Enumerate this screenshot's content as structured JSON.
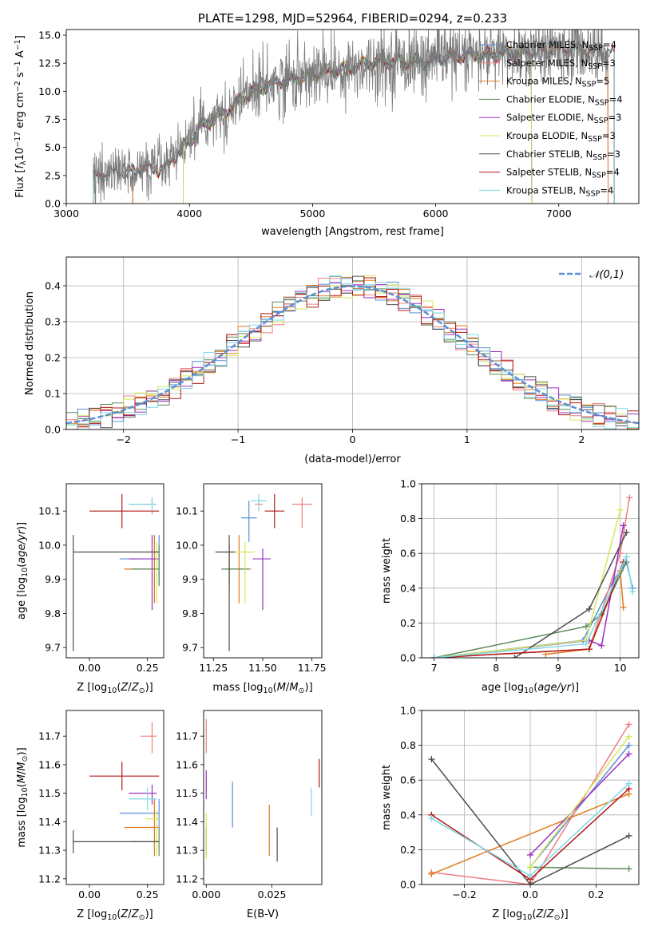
{
  "colors": {
    "chabrier_miles": "#5b8fd6",
    "salpeter_miles": "#f07f7f",
    "kroupa_miles": "#e07b1f",
    "chabrier_elodie": "#5a8a5a",
    "salpeter_elodie": "#9b30c0",
    "kroupa_elodie": "#d4e85a",
    "chabrier_stelib": "#4d4d4d",
    "salpeter_stelib": "#b21818",
    "kroupa_stelib": "#7fd9e6",
    "normal_curve": "#5b8fd6"
  },
  "chart_data": [
    {
      "id": "spectrum",
      "type": "line",
      "title": "PLATE=1298, MJD=52964, FIBERID=0294, z=0.233",
      "xlabel": "wavelength [Angstrom, rest frame]",
      "ylabel": "Flux [f_λ10^-17 erg cm^-2 s^-1 A^-1]",
      "xlim": [
        3000,
        7650
      ],
      "ylim": [
        0,
        15.5
      ],
      "xticks": [
        "3000",
        "4000",
        "5000",
        "6000",
        "7000"
      ],
      "yticks": [
        "0.0",
        "2.5",
        "5.0",
        "7.5",
        "10.0",
        "12.5",
        "15.0"
      ],
      "legend_position": "right",
      "legend": [
        "Chabrier MILES, N_SSP=4",
        "Salpeter MILES, N_SSP=3",
        "Kroupa MILES, N_SSP=5",
        "Chabrier ELODIE, N_SSP=4",
        "Salpeter ELODIE, N_SSP=3",
        "Kroupa ELODIE, N_SSP=3",
        "Chabrier STELIB, N_SSP=3",
        "Salpeter STELIB, N_SSP=4",
        "Kroupa STELIB, N_SSP=4"
      ],
      "continuum_x": [
        3200,
        3400,
        3600,
        3800,
        3950,
        4100,
        4300,
        4500,
        4700,
        4900,
        5100,
        5300,
        5500,
        5700,
        5900,
        6100,
        6300,
        6500,
        6700,
        6900,
        7100,
        7300,
        7450
      ],
      "continuum_y": [
        2.4,
        2.8,
        3.0,
        3.1,
        5.0,
        6.9,
        8.2,
        9.9,
        10.8,
        11.2,
        11.7,
        12.1,
        12.6,
        12.7,
        12.6,
        13.1,
        13.2,
        13.3,
        13.4,
        13.6,
        13.9,
        13.5,
        13.3
      ]
    },
    {
      "id": "residual-histogram",
      "type": "line",
      "xlabel": "(data-model)/error",
      "ylabel": "Normed distribution",
      "xlim": [
        -2.5,
        2.5
      ],
      "ylim": [
        0,
        0.48
      ],
      "xticks": [
        "−2",
        "−1",
        "0",
        "1",
        "2"
      ],
      "yticks": [
        "0.0",
        "0.1",
        "0.2",
        "0.3",
        "0.4"
      ],
      "grid": true,
      "legend": [
        "𝒩(0,1)"
      ],
      "legend_position": "top-right"
    },
    {
      "id": "age-vs-Z",
      "type": "scatter",
      "xlabel": "Z [log10(Z/Z☉)]",
      "ylabel": "age  [log10(age/yr)]",
      "xlim": [
        -0.1,
        0.32
      ],
      "ylim": [
        9.67,
        10.18
      ],
      "xticks": [
        "0.00",
        "0.25"
      ],
      "yticks": [
        "9.7",
        "9.8",
        "9.9",
        "10.0",
        "10.1"
      ],
      "points": [
        {
          "model": "chabrier_miles",
          "x": 0.3,
          "y": 9.96,
          "xerr": [
            0.17,
            0.0
          ],
          "yerr": [
            0.07,
            0.07
          ]
        },
        {
          "model": "salpeter_miles",
          "x": 0.27,
          "y": 10.12,
          "xerr": [
            0.1,
            0.02
          ],
          "yerr": [
            0.03,
            0.02
          ]
        },
        {
          "model": "kroupa_miles",
          "x": 0.28,
          "y": 9.93,
          "xerr": [
            0.13,
            0.02
          ],
          "yerr": [
            0.1,
            0.1
          ]
        },
        {
          "model": "chabrier_elodie",
          "x": 0.3,
          "y": 9.93,
          "xerr": [
            0.12,
            0.0
          ],
          "yerr": [
            0.05,
            0.07
          ]
        },
        {
          "model": "salpeter_elodie",
          "x": 0.27,
          "y": 9.96,
          "xerr": [
            0.1,
            0.03
          ],
          "yerr": [
            0.15,
            0.07
          ]
        },
        {
          "model": "kroupa_elodie",
          "x": 0.29,
          "y": 9.98,
          "xerr": [
            0.05,
            0.01
          ],
          "yerr": [
            0.15,
            0.03
          ]
        },
        {
          "model": "chabrier_stelib",
          "x": -0.07,
          "y": 9.98,
          "xerr": [
            0.0,
            0.37
          ],
          "yerr": [
            0.29,
            0.05
          ]
        },
        {
          "model": "salpeter_stelib",
          "x": 0.14,
          "y": 10.1,
          "xerr": [
            0.14,
            0.16
          ],
          "yerr": [
            0.05,
            0.05
          ]
        },
        {
          "model": "kroupa_stelib",
          "x": 0.27,
          "y": 10.12,
          "xerr": [
            0.1,
            0.02
          ],
          "yerr": [
            0.02,
            0.02
          ]
        }
      ]
    },
    {
      "id": "age-vs-mass",
      "type": "scatter",
      "xlabel": "mass [log10(M/M☉)]",
      "ylabel": "",
      "xlim": [
        11.2,
        11.8
      ],
      "ylim": [
        9.67,
        10.18
      ],
      "xticks": [
        "11.25",
        "11.50",
        "11.75"
      ],
      "yticks": [
        "9.7",
        "9.8",
        "9.9",
        "10.0",
        "10.1"
      ],
      "points": [
        {
          "model": "chabrier_miles",
          "x": 11.43,
          "y": 10.08,
          "xerr": [
            0.04,
            0.04
          ],
          "yerr": [
            0.07,
            0.05
          ]
        },
        {
          "model": "salpeter_miles",
          "x": 11.48,
          "y": 10.12,
          "xerr": [
            0.02,
            0.02
          ],
          "yerr": [
            0.02,
            0.02
          ]
        },
        {
          "model": "kroupa_miles",
          "x": 11.38,
          "y": 9.93,
          "xerr": [
            0.07,
            0.06
          ],
          "yerr": [
            0.1,
            0.1
          ]
        },
        {
          "model": "chabrier_elodie",
          "x": 11.33,
          "y": 9.93,
          "xerr": [
            0.04,
            0.1
          ],
          "yerr": [
            0.05,
            0.07
          ]
        },
        {
          "model": "salpeter_elodie",
          "x": 11.5,
          "y": 9.96,
          "xerr": [
            0.05,
            0.04
          ],
          "yerr": [
            0.15,
            0.03
          ]
        },
        {
          "model": "kroupa_elodie",
          "x": 11.41,
          "y": 9.98,
          "xerr": [
            0.1,
            0.05
          ],
          "yerr": [
            0.15,
            0.03
          ]
        },
        {
          "model": "chabrier_stelib",
          "x": 11.33,
          "y": 9.98,
          "xerr": [
            0.07,
            0.03
          ],
          "yerr": [
            0.29,
            0.05
          ]
        },
        {
          "model": "salpeter_stelib",
          "x": 11.56,
          "y": 10.1,
          "xerr": [
            0.05,
            0.05
          ],
          "yerr": [
            0.05,
            0.05
          ]
        },
        {
          "model": "kroupa_stelib",
          "x": 11.48,
          "y": 10.13,
          "xerr": [
            0.04,
            0.04
          ],
          "yerr": [
            0.03,
            0.02
          ]
        },
        {
          "model": "salpeter_miles",
          "x": 11.7,
          "y": 10.12,
          "xerr": [
            0.05,
            0.05
          ],
          "yerr": [
            0.07,
            0.02
          ]
        }
      ]
    },
    {
      "id": "mass-weight-vs-age",
      "type": "line",
      "xlabel": "age  [log10(age/yr)]",
      "ylabel": "mass weight",
      "xlim": [
        6.8,
        10.3
      ],
      "ylim": [
        0.0,
        1.0
      ],
      "xticks": [
        "7",
        "8",
        "9",
        "10"
      ],
      "yticks": [
        "0.0",
        "0.2",
        "0.4",
        "0.6",
        "0.8",
        "1.0"
      ],
      "grid": true,
      "series": [
        {
          "model": "chabrier_miles",
          "x": [
            7.0,
            9.4,
            9.9,
            10.1,
            10.2
          ],
          "y": [
            0.0,
            0.1,
            0.45,
            0.55,
            0.4
          ]
        },
        {
          "model": "salpeter_miles",
          "x": [
            7.0,
            9.5,
            10.0,
            10.15
          ],
          "y": [
            0.0,
            0.05,
            0.6,
            0.92
          ]
        },
        {
          "model": "kroupa_miles",
          "x": [
            8.8,
            9.5,
            10.0,
            10.05
          ],
          "y": [
            0.02,
            0.05,
            0.5,
            0.29
          ]
        },
        {
          "model": "chabrier_elodie",
          "x": [
            7.0,
            9.45,
            9.7,
            10.1
          ],
          "y": [
            0.0,
            0.18,
            0.25,
            0.55
          ]
        },
        {
          "model": "salpeter_elodie",
          "x": [
            7.0,
            9.5,
            9.7,
            10.05
          ],
          "y": [
            0.0,
            0.1,
            0.07,
            0.76
          ]
        },
        {
          "model": "kroupa_elodie",
          "x": [
            7.0,
            9.45,
            10.0
          ],
          "y": [
            0.0,
            0.1,
            0.85
          ]
        },
        {
          "model": "chabrier_stelib",
          "x": [
            8.3,
            9.5,
            10.1
          ],
          "y": [
            0.0,
            0.28,
            0.72
          ]
        },
        {
          "model": "salpeter_stelib",
          "x": [
            7.0,
            9.5,
            10.05
          ],
          "y": [
            0.0,
            0.05,
            0.55
          ]
        },
        {
          "model": "kroupa_stelib",
          "x": [
            7.0,
            9.45,
            10.1,
            10.2
          ],
          "y": [
            0.0,
            0.08,
            0.58,
            0.38
          ]
        }
      ]
    },
    {
      "id": "mass-vs-Z",
      "type": "scatter",
      "xlabel": "Z [log10(Z/Z☉)]",
      "ylabel": "mass [log10(M/M☉)]",
      "xlim": [
        -0.1,
        0.32
      ],
      "ylim": [
        11.18,
        11.79
      ],
      "xticks": [
        "0.00",
        "0.25"
      ],
      "yticks": [
        "11.2",
        "11.3",
        "11.4",
        "11.5",
        "11.6",
        "11.7"
      ],
      "points": [
        {
          "model": "chabrier_miles",
          "x": 0.3,
          "y": 11.43,
          "xerr": [
            0.17,
            0.0
          ],
          "yerr": [
            0.05,
            0.05
          ]
        },
        {
          "model": "salpeter_miles",
          "x": 0.27,
          "y": 11.7,
          "xerr": [
            0.05,
            0.02
          ],
          "yerr": [
            0.06,
            0.05
          ]
        },
        {
          "model": "kroupa_miles",
          "x": 0.28,
          "y": 11.38,
          "xerr": [
            0.13,
            0.02
          ],
          "yerr": [
            0.1,
            0.1
          ]
        },
        {
          "model": "chabrier_elodie",
          "x": 0.3,
          "y": 11.33,
          "xerr": [
            0.12,
            0.0
          ],
          "yerr": [
            0.05,
            0.05
          ]
        },
        {
          "model": "salpeter_elodie",
          "x": 0.27,
          "y": 11.5,
          "xerr": [
            0.1,
            0.02
          ],
          "yerr": [
            0.04,
            0.03
          ]
        },
        {
          "model": "kroupa_elodie",
          "x": 0.29,
          "y": 11.41,
          "xerr": [
            0.05,
            0.01
          ],
          "yerr": [
            0.13,
            0.03
          ]
        },
        {
          "model": "chabrier_stelib",
          "x": -0.07,
          "y": 11.33,
          "xerr": [
            0.0,
            0.37
          ],
          "yerr": [
            0.04,
            0.04
          ]
        },
        {
          "model": "salpeter_stelib",
          "x": 0.14,
          "y": 11.56,
          "xerr": [
            0.14,
            0.16
          ],
          "yerr": [
            0.05,
            0.05
          ]
        },
        {
          "model": "kroupa_stelib",
          "x": 0.25,
          "y": 11.48,
          "xerr": [
            0.08,
            0.04
          ],
          "yerr": [
            0.04,
            0.04
          ]
        }
      ]
    },
    {
      "id": "mass-vs-ebv",
      "type": "scatter",
      "xlabel": "E(B-V)",
      "ylabel": "",
      "xlim": [
        -0.001,
        0.044
      ],
      "ylim": [
        11.18,
        11.79
      ],
      "xticks": [
        "0.000",
        "0.025"
      ],
      "yticks": [
        "11.2",
        "11.3",
        "11.4",
        "11.5",
        "11.6",
        "11.7"
      ],
      "points": [
        {
          "model": "chabrier_miles",
          "x": 0.01,
          "y": 11.46,
          "xerr": [
            0,
            0
          ],
          "yerr": [
            0.08,
            0.08
          ]
        },
        {
          "model": "salpeter_miles",
          "x": 0.0,
          "y": 11.7,
          "xerr": [
            0,
            0
          ],
          "yerr": [
            0.06,
            0.06
          ]
        },
        {
          "model": "kroupa_miles",
          "x": 0.024,
          "y": 11.37,
          "xerr": [
            0,
            0
          ],
          "yerr": [
            0.09,
            0.09
          ]
        },
        {
          "model": "chabrier_elodie",
          "x": 0.0,
          "y": 11.33,
          "xerr": [
            0,
            0
          ],
          "yerr": [
            0.05,
            0.05
          ]
        },
        {
          "model": "salpeter_elodie",
          "x": 0.0,
          "y": 11.53,
          "xerr": [
            0,
            0
          ],
          "yerr": [
            0.05,
            0.05
          ]
        },
        {
          "model": "kroupa_elodie",
          "x": 0.0,
          "y": 11.35,
          "xerr": [
            0,
            0
          ],
          "yerr": [
            0.08,
            0.08
          ]
        },
        {
          "model": "chabrier_stelib",
          "x": 0.027,
          "y": 11.32,
          "xerr": [
            0,
            0
          ],
          "yerr": [
            0.06,
            0.06
          ]
        },
        {
          "model": "salpeter_stelib",
          "x": 0.043,
          "y": 11.57,
          "xerr": [
            0,
            0
          ],
          "yerr": [
            0.05,
            0.05
          ]
        },
        {
          "model": "kroupa_stelib",
          "x": 0.04,
          "y": 11.47,
          "xerr": [
            0,
            0
          ],
          "yerr": [
            0.05,
            0.05
          ]
        }
      ]
    },
    {
      "id": "mass-weight-vs-Z",
      "type": "line",
      "xlabel": "Z [log10(Z/Z☉)]",
      "ylabel": "mass weight",
      "xlim": [
        -0.33,
        0.33
      ],
      "ylim": [
        0.0,
        1.0
      ],
      "xticks": [
        "−0.2",
        "0.0",
        "0.2"
      ],
      "yticks": [
        "0.0",
        "0.2",
        "0.4",
        "0.6",
        "0.8",
        "1.0"
      ],
      "grid": true,
      "series": [
        {
          "model": "chabrier_miles",
          "x": [
            0.0,
            0.3
          ],
          "y": [
            0.1,
            0.8
          ]
        },
        {
          "model": "salpeter_miles",
          "x": [
            -0.3,
            0.0,
            0.3
          ],
          "y": [
            0.07,
            0.0,
            0.92
          ]
        },
        {
          "model": "kroupa_miles",
          "x": [
            -0.3,
            0.3
          ],
          "y": [
            0.06,
            0.52
          ]
        },
        {
          "model": "chabrier_elodie",
          "x": [
            0.0,
            0.3
          ],
          "y": [
            0.1,
            0.09
          ]
        },
        {
          "model": "salpeter_elodie",
          "x": [
            0.0,
            0.3
          ],
          "y": [
            0.17,
            0.75
          ]
        },
        {
          "model": "kroupa_elodie",
          "x": [
            0.0,
            0.3
          ],
          "y": [
            0.1,
            0.85
          ]
        },
        {
          "model": "chabrier_stelib",
          "x": [
            -0.3,
            0.0,
            0.3
          ],
          "y": [
            0.72,
            0.0,
            0.28
          ]
        },
        {
          "model": "salpeter_stelib",
          "x": [
            -0.3,
            0.0,
            0.3
          ],
          "y": [
            0.4,
            0.03,
            0.55
          ]
        },
        {
          "model": "kroupa_stelib",
          "x": [
            -0.3,
            0.0,
            0.3
          ],
          "y": [
            0.38,
            0.05,
            0.58
          ]
        }
      ]
    }
  ]
}
